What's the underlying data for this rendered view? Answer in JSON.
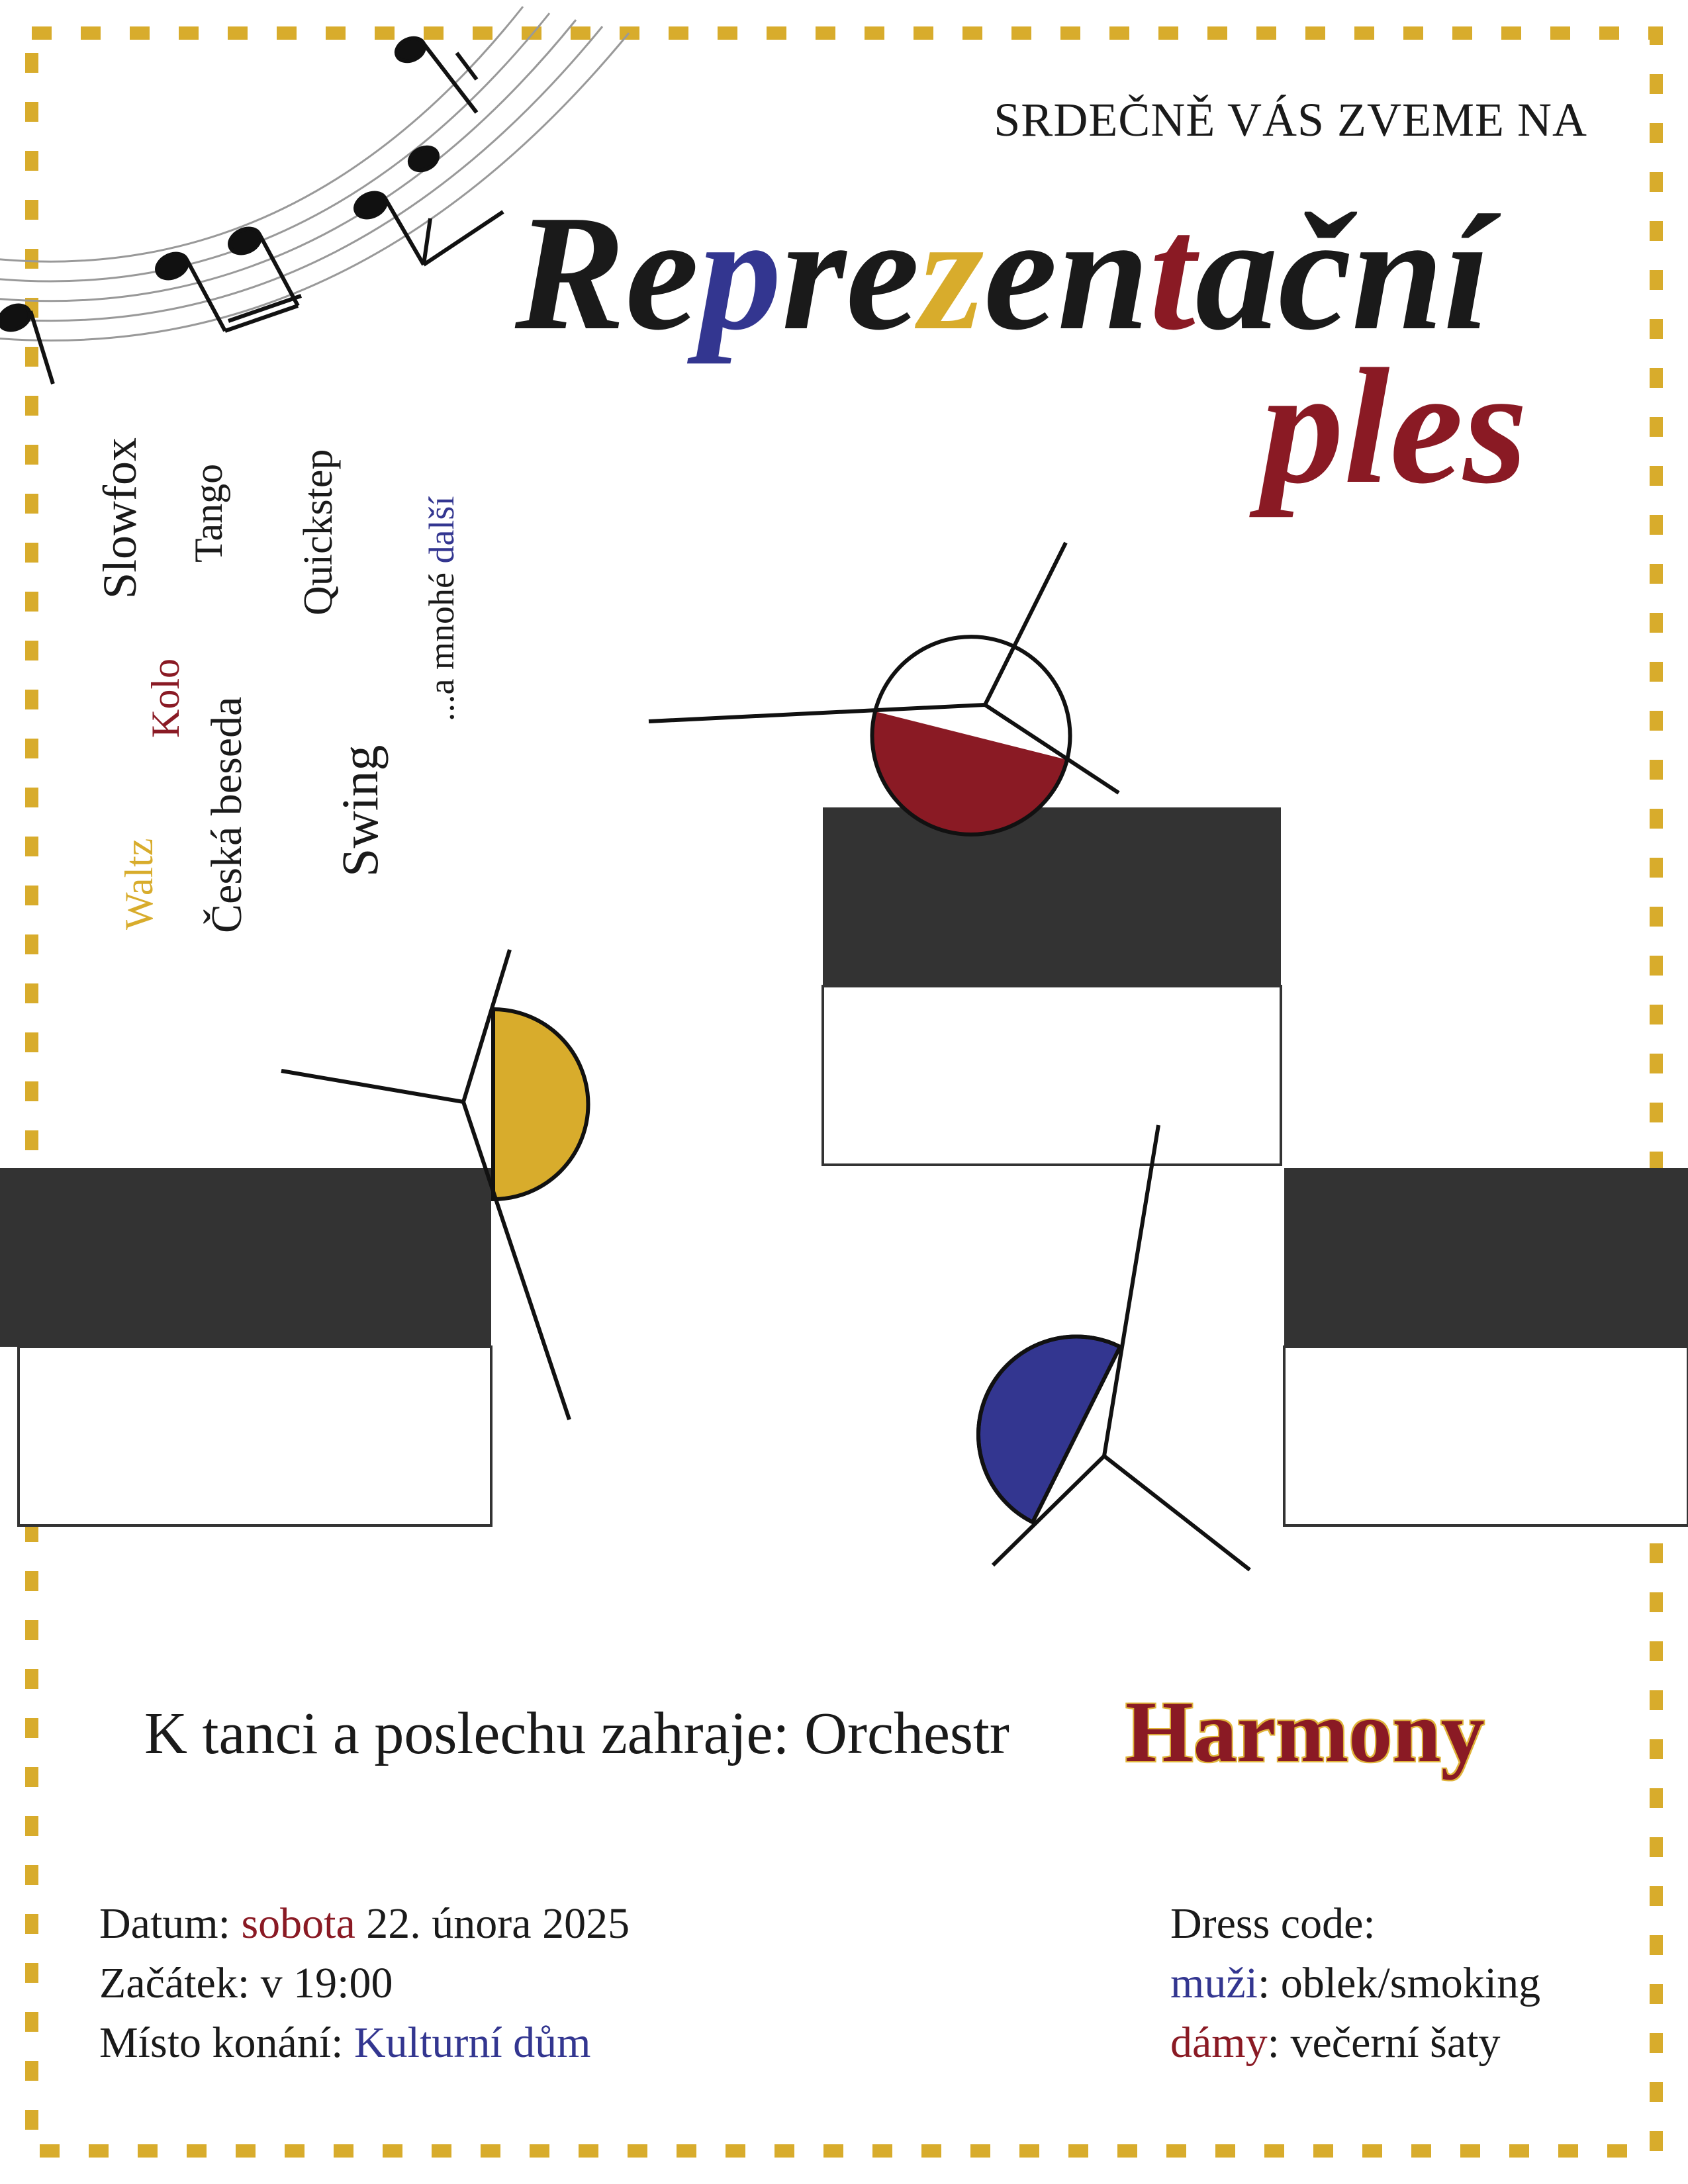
{
  "colors": {
    "red": "#8a1a24",
    "blue": "#333690",
    "gold": "#d8ac2c",
    "dark": "#333333",
    "text": "#1a1a1a"
  },
  "invite": "SRDEČNĚ VÁS ZVEME NA",
  "title": {
    "line1": [
      {
        "t": "Re",
        "c": "text"
      },
      {
        "t": "p",
        "c": "blue"
      },
      {
        "t": "re",
        "c": "text"
      },
      {
        "t": "z",
        "c": "gold"
      },
      {
        "t": "en",
        "c": "text"
      },
      {
        "t": "t",
        "c": "red"
      },
      {
        "t": "ační",
        "c": "text"
      }
    ],
    "line2": "ples"
  },
  "dances": [
    {
      "label": "Slowfox",
      "color": "text",
      "size": 72
    },
    {
      "label": "Tango",
      "color": "text",
      "size": 60
    },
    {
      "label": "Quickstep",
      "color": "text",
      "size": 62
    },
    {
      "label": "...a mnohé ",
      "extra": "další",
      "color": "text",
      "extraColor": "blue",
      "size": 54
    },
    {
      "label": "Kolo",
      "color": "red",
      "size": 60
    },
    {
      "label": "Česká beseda",
      "color": "text",
      "size": 66
    },
    {
      "label": "Swing",
      "color": "text",
      "size": 78
    },
    {
      "label": "Waltz",
      "color": "gold",
      "size": 60
    }
  ],
  "orchestra": {
    "prefix": "K tanci a poslechu zahraje: Orchestr",
    "name": "Harmony"
  },
  "details": {
    "date_label": "Datum: ",
    "date_day": "sobota",
    "date_rest": " 22. února 2025",
    "start_label": "Začátek: v 19:00",
    "place_label": "Místo konání: ",
    "place": "Kulturní dům"
  },
  "dress": {
    "title": "Dress code:",
    "men_label": "muži",
    "men_value": ": oblek/smoking",
    "women_label": "dámy",
    "women_value": ": večerní šaty"
  },
  "icons": [
    "music-staff-icon",
    "musical-note-icon",
    "piano-keys-icon",
    "dancer-figure-icon"
  ]
}
